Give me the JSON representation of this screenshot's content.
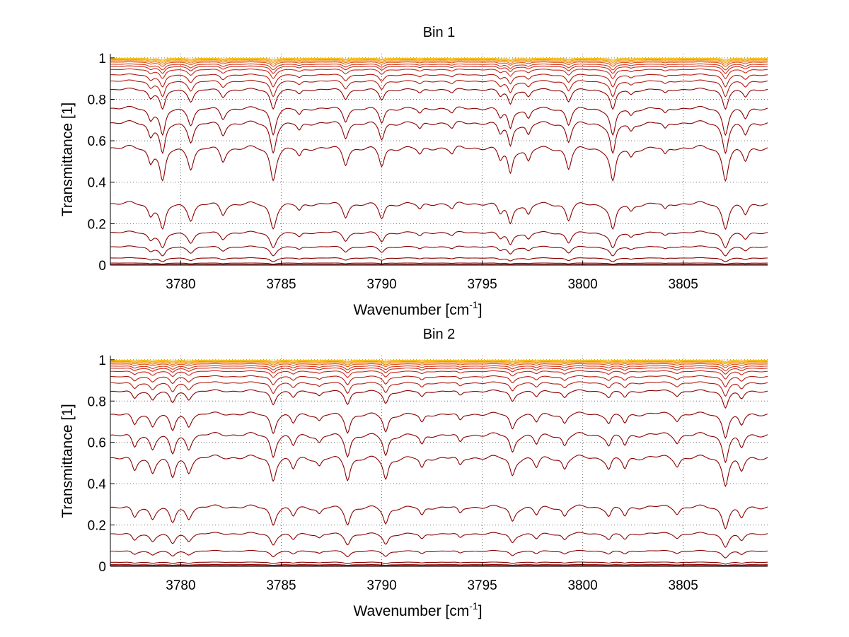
{
  "chart_data": [
    {
      "type": "line",
      "title": "Bin 1",
      "xlabel": "Wavenumber [cm",
      "xlabel_sup": "-1",
      "xlabel_end": "]",
      "ylabel": "Transmittance [1]",
      "xlim": [
        3776.5,
        3809.2
      ],
      "ylim": [
        0,
        1.02
      ],
      "xticks": [
        3780,
        3785,
        3790,
        3795,
        3800,
        3805
      ],
      "yticks": [
        0,
        0.2,
        0.4,
        0.6,
        0.8,
        1
      ],
      "grid": true,
      "legend": "none",
      "colors": [
        "#8b0000",
        "#b11b0f",
        "#c8281a",
        "#d0391d",
        "#e05a1a",
        "#ee7d12",
        "#f59a0c",
        "#f8b310",
        "#f5c71a"
      ],
      "baselines": [
        0.003,
        0.01,
        0.035,
        0.09,
        0.16,
        0.3,
        0.57,
        0.69,
        0.76,
        0.85,
        0.89,
        0.92,
        0.945,
        0.96,
        0.97,
        0.98,
        0.986,
        0.991,
        0.995,
        0.998
      ],
      "absorption_lines": [
        {
          "x": 3779.1,
          "depth": 0.32,
          "width": 0.16
        },
        {
          "x": 3778.5,
          "depth": 0.12,
          "width": 0.14
        },
        {
          "x": 3780.5,
          "depth": 0.18,
          "width": 0.16
        },
        {
          "x": 3782.1,
          "depth": 0.12,
          "width": 0.15
        },
        {
          "x": 3784.6,
          "depth": 0.3,
          "width": 0.16
        },
        {
          "x": 3785.9,
          "depth": 0.08,
          "width": 0.14
        },
        {
          "x": 3788.2,
          "depth": 0.15,
          "width": 0.15
        },
        {
          "x": 3790.0,
          "depth": 0.17,
          "width": 0.15
        },
        {
          "x": 3791.9,
          "depth": 0.07,
          "width": 0.14
        },
        {
          "x": 3793.5,
          "depth": 0.06,
          "width": 0.14
        },
        {
          "x": 3795.9,
          "depth": 0.1,
          "width": 0.14
        },
        {
          "x": 3796.4,
          "depth": 0.23,
          "width": 0.14
        },
        {
          "x": 3797.3,
          "depth": 0.12,
          "width": 0.14
        },
        {
          "x": 3799.3,
          "depth": 0.19,
          "width": 0.15
        },
        {
          "x": 3801.5,
          "depth": 0.33,
          "width": 0.16
        },
        {
          "x": 3802.4,
          "depth": 0.08,
          "width": 0.14
        },
        {
          "x": 3804.1,
          "depth": 0.07,
          "width": 0.14
        },
        {
          "x": 3807.1,
          "depth": 0.3,
          "width": 0.16
        },
        {
          "x": 3808.1,
          "depth": 0.12,
          "width": 0.15
        }
      ]
    },
    {
      "type": "line",
      "title": "Bin 2",
      "xlabel": "Wavenumber [cm",
      "xlabel_sup": "-1",
      "xlabel_end": "]",
      "ylabel": "Transmittance [1]",
      "xlim": [
        3776.5,
        3809.2
      ],
      "ylim": [
        0,
        1.02
      ],
      "xticks": [
        3780,
        3785,
        3790,
        3795,
        3800,
        3805
      ],
      "yticks": [
        0,
        0.2,
        0.4,
        0.6,
        0.8,
        1
      ],
      "grid": true,
      "legend": "none",
      "colors": [
        "#8b0000",
        "#b11b0f",
        "#c8281a",
        "#d0391d",
        "#e05a1a",
        "#ee7d12",
        "#f59a0c",
        "#f8b310",
        "#f5c71a"
      ],
      "baselines": [
        0.003,
        0.008,
        0.02,
        0.075,
        0.16,
        0.29,
        0.53,
        0.64,
        0.74,
        0.85,
        0.89,
        0.92,
        0.945,
        0.96,
        0.97,
        0.98,
        0.986,
        0.991,
        0.995,
        0.998
      ],
      "absorption_lines": [
        {
          "x": 3777.7,
          "depth": 0.12,
          "width": 0.15
        },
        {
          "x": 3778.6,
          "depth": 0.12,
          "width": 0.15
        },
        {
          "x": 3779.6,
          "depth": 0.18,
          "width": 0.16
        },
        {
          "x": 3780.4,
          "depth": 0.12,
          "width": 0.15
        },
        {
          "x": 3784.6,
          "depth": 0.2,
          "width": 0.15
        },
        {
          "x": 3785.6,
          "depth": 0.1,
          "width": 0.14
        },
        {
          "x": 3786.9,
          "depth": 0.07,
          "width": 0.14
        },
        {
          "x": 3788.3,
          "depth": 0.2,
          "width": 0.15
        },
        {
          "x": 3790.2,
          "depth": 0.2,
          "width": 0.15
        },
        {
          "x": 3792.0,
          "depth": 0.1,
          "width": 0.14
        },
        {
          "x": 3793.9,
          "depth": 0.08,
          "width": 0.14
        },
        {
          "x": 3796.5,
          "depth": 0.16,
          "width": 0.15
        },
        {
          "x": 3797.7,
          "depth": 0.09,
          "width": 0.14
        },
        {
          "x": 3799.1,
          "depth": 0.1,
          "width": 0.14
        },
        {
          "x": 3801.3,
          "depth": 0.1,
          "width": 0.14
        },
        {
          "x": 3802.1,
          "depth": 0.1,
          "width": 0.14
        },
        {
          "x": 3804.7,
          "depth": 0.07,
          "width": 0.14
        },
        {
          "x": 3807.1,
          "depth": 0.25,
          "width": 0.16
        },
        {
          "x": 3807.9,
          "depth": 0.12,
          "width": 0.15
        }
      ]
    }
  ]
}
